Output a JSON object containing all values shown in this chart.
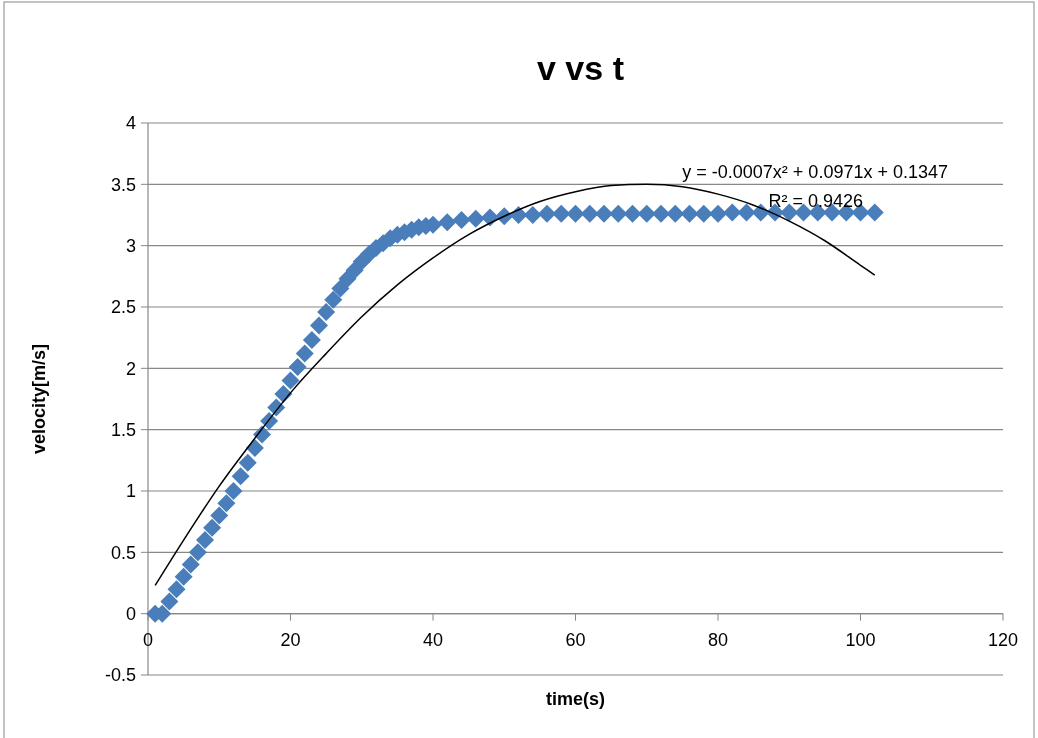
{
  "chart_data": {
    "type": "scatter",
    "title": "v vs t",
    "xlabel": "time(s)",
    "ylabel": "velocity[m/s]",
    "xlim": [
      0,
      120
    ],
    "xticks": [
      0,
      20,
      40,
      60,
      80,
      100,
      120
    ],
    "ylim": [
      -0.5,
      4
    ],
    "yticks": [
      -0.5,
      0,
      0.5,
      1,
      1.5,
      2,
      2.5,
      3,
      3.5,
      4
    ],
    "grid": "y",
    "marker": "diamond",
    "annotations": [
      "y = -0.0007x² + 0.0971x + 0.1347",
      "R² = 0.9426"
    ],
    "series": [
      {
        "color": "#4a7ebb",
        "x": [
          1,
          2,
          3,
          4,
          5,
          6,
          7,
          8,
          9,
          10,
          11,
          12,
          13,
          14,
          15,
          16,
          17,
          18,
          19,
          20,
          21,
          22,
          23,
          24,
          25,
          26,
          27,
          28,
          29,
          30,
          31,
          32,
          33,
          34,
          35,
          36,
          37,
          38,
          39,
          40,
          42,
          44,
          46,
          48,
          50,
          52,
          54,
          56,
          58,
          60,
          62,
          64,
          66,
          68,
          70,
          72,
          74,
          76,
          78,
          80,
          82,
          84,
          86,
          88,
          90,
          92,
          94,
          96,
          98,
          100,
          102
        ],
        "values": [
          0,
          0,
          0.1,
          0.2,
          0.3,
          0.4,
          0.5,
          0.6,
          0.7,
          0.8,
          0.9,
          1.0,
          1.12,
          1.23,
          1.35,
          1.46,
          1.57,
          1.68,
          1.79,
          1.9,
          2.01,
          2.12,
          2.23,
          2.35,
          2.46,
          2.56,
          2.65,
          2.73,
          2.8,
          2.87,
          2.93,
          2.98,
          3.02,
          3.06,
          3.09,
          3.11,
          3.13,
          3.15,
          3.16,
          3.17,
          3.19,
          3.21,
          3.22,
          3.23,
          3.24,
          3.25,
          3.25,
          3.26,
          3.26,
          3.26,
          3.26,
          3.26,
          3.26,
          3.26,
          3.26,
          3.26,
          3.26,
          3.26,
          3.26,
          3.26,
          3.27,
          3.27,
          3.27,
          3.27,
          3.27,
          3.27,
          3.27,
          3.27,
          3.27,
          3.27,
          3.27
        ]
      },
      {
        "type": "line",
        "color": "#000000",
        "marker": "none",
        "x": [
          1,
          5,
          10,
          15,
          20,
          25,
          30,
          35,
          40,
          45,
          50,
          55,
          60,
          65,
          70,
          75,
          80,
          85,
          90,
          95,
          100,
          102
        ],
        "values": [
          0.23,
          0.6,
          1.04,
          1.43,
          1.8,
          2.12,
          2.42,
          2.68,
          2.9,
          3.09,
          3.24,
          3.36,
          3.44,
          3.49,
          3.5,
          3.48,
          3.42,
          3.33,
          3.2,
          3.04,
          2.84,
          2.76
        ]
      }
    ]
  }
}
